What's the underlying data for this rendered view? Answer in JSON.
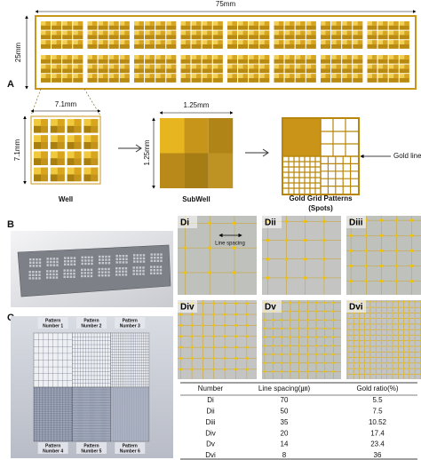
{
  "panel_a": {
    "label": "A",
    "plate_width": "75mm",
    "plate_height": "25mm",
    "well_width": "7.1mm",
    "well_height": "7.1mm",
    "well_caption": "Well",
    "subwell_width": "1.25mm",
    "subwell_height": "1.25mm",
    "subwell_caption": "SubWell",
    "pattern_caption": [
      "Gold Grid Patterns",
      "(Spots)"
    ],
    "gold_line_label": "Gold line"
  },
  "panel_b": {
    "label": "B"
  },
  "panel_c": {
    "label": "C",
    "patterns": [
      [
        "Pattern",
        "Number 1"
      ],
      [
        "Pattern",
        "Number 2"
      ],
      [
        "Pattern",
        "Number 3"
      ],
      [
        "Pattern",
        "Number 4"
      ],
      [
        "Pattern",
        "Number 5"
      ],
      [
        "Pattern",
        "Number 6"
      ]
    ]
  },
  "panel_d": {
    "panels": [
      "Di",
      "Dii",
      "Diii",
      "Div",
      "Dv",
      "Dvi"
    ],
    "line_spacing_label": "Line spacing"
  },
  "table": {
    "header": [
      "Number",
      "Line spacing(㎛)",
      "Gold ratio(%)"
    ],
    "rows": [
      [
        "Di",
        70,
        5.5
      ],
      [
        "Dii",
        50,
        7.5
      ],
      [
        "Diii",
        35,
        10.52
      ],
      [
        "Div",
        20,
        17.4
      ],
      [
        "Dv",
        14,
        23.4
      ],
      [
        "Dvi",
        8,
        36
      ]
    ]
  }
}
